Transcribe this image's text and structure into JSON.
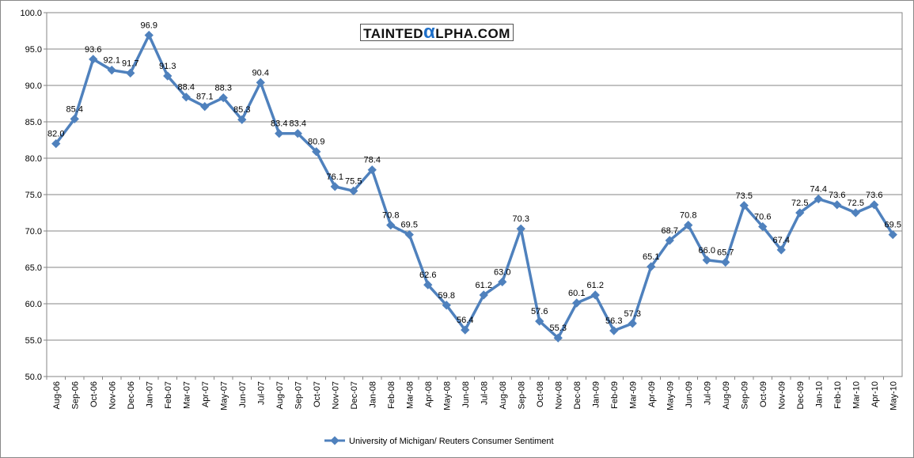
{
  "chart_data": {
    "type": "line",
    "title": "",
    "xlabel": "",
    "ylabel": "",
    "ylim": [
      50,
      100
    ],
    "yticks": [
      "50.0",
      "55.0",
      "60.0",
      "65.0",
      "70.0",
      "75.0",
      "80.0",
      "85.0",
      "90.0",
      "95.0",
      "100.0"
    ],
    "grid": true,
    "legend_position": "bottom",
    "categories": [
      "Aug-06",
      "Sep-06",
      "Oct-06",
      "Nov-06",
      "Dec-06",
      "Jan-07",
      "Feb-07",
      "Mar-07",
      "Apr-07",
      "May-07",
      "Jun-07",
      "Jul-07",
      "Aug-07",
      "Sep-07",
      "Oct-07",
      "Nov-07",
      "Dec-07",
      "Jan-08",
      "Feb-08",
      "Mar-08",
      "Apr-08",
      "May-08",
      "Jun-08",
      "Jul-08",
      "Aug-08",
      "Sep-08",
      "Oct-08",
      "Nov-08",
      "Dec-08",
      "Jan-09",
      "Feb-09",
      "Mar-09",
      "Apr-09",
      "May-09",
      "Jun-09",
      "Jul-09",
      "Aug-09",
      "Sep-09",
      "Oct-09",
      "Nov-09",
      "Dec-09",
      "Jan-10",
      "Feb-10",
      "Mar-10",
      "Apr-10",
      "May-10"
    ],
    "series": [
      {
        "name": "University of Michigan/ Reuters Consumer Sentiment",
        "color": "#4f81bd",
        "values": [
          82.0,
          85.4,
          93.6,
          92.1,
          91.7,
          96.9,
          91.3,
          88.4,
          87.1,
          88.3,
          85.3,
          90.4,
          83.4,
          83.4,
          80.9,
          76.1,
          75.5,
          78.4,
          70.8,
          69.5,
          62.6,
          59.8,
          56.4,
          61.2,
          63.0,
          70.3,
          57.6,
          55.3,
          60.1,
          61.2,
          56.3,
          57.3,
          65.1,
          68.7,
          70.8,
          66.0,
          65.7,
          73.5,
          70.6,
          67.4,
          72.5,
          74.4,
          73.6,
          72.5,
          73.6,
          69.5
        ]
      }
    ]
  },
  "logo": {
    "pre": "TAINTED",
    "alpha": "α",
    "post": "LPHA.COM"
  }
}
